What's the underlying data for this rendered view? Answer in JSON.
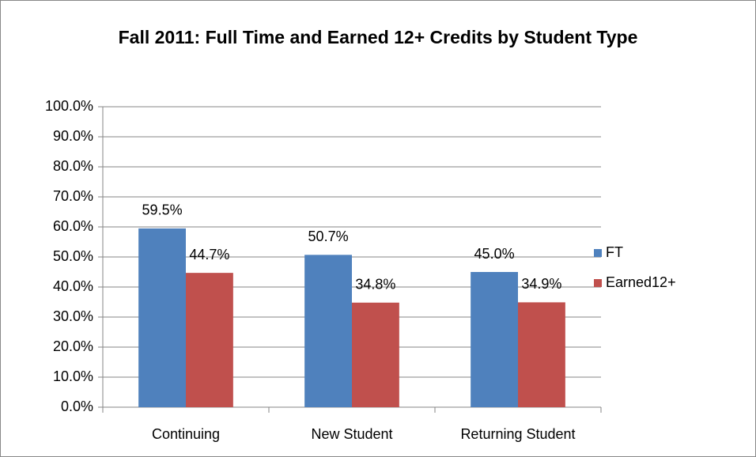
{
  "chart_data": {
    "type": "bar",
    "title": "Fall 2011: Full Time and Earned 12+ Credits by Student Type",
    "categories": [
      "Continuing",
      "New Student",
      "Returning Student"
    ],
    "series": [
      {
        "name": "FT",
        "color": "#4f81bd",
        "values": [
          59.5,
          50.7,
          45.0
        ],
        "value_labels": [
          "59.5%",
          "50.7%",
          "45.0%"
        ]
      },
      {
        "name": "Earned12+",
        "color": "#c0504d",
        "values": [
          44.7,
          34.8,
          34.9
        ],
        "value_labels": [
          "44.7%",
          "34.8%",
          "34.9%"
        ]
      }
    ],
    "ylim": [
      0,
      100
    ],
    "yticks": [
      {
        "value": 0,
        "label": "0.0%"
      },
      {
        "value": 10,
        "label": "10.0%"
      },
      {
        "value": 20,
        "label": "20.0%"
      },
      {
        "value": 30,
        "label": "30.0%"
      },
      {
        "value": 40,
        "label": "40.0%"
      },
      {
        "value": 50,
        "label": "50.0%"
      },
      {
        "value": 60,
        "label": "60.0%"
      },
      {
        "value": 70,
        "label": "70.0%"
      },
      {
        "value": 80,
        "label": "80.0%"
      },
      {
        "value": 90,
        "label": "90.0%"
      },
      {
        "value": 100,
        "label": "100.0%"
      }
    ],
    "grid": true,
    "legend": "right"
  }
}
